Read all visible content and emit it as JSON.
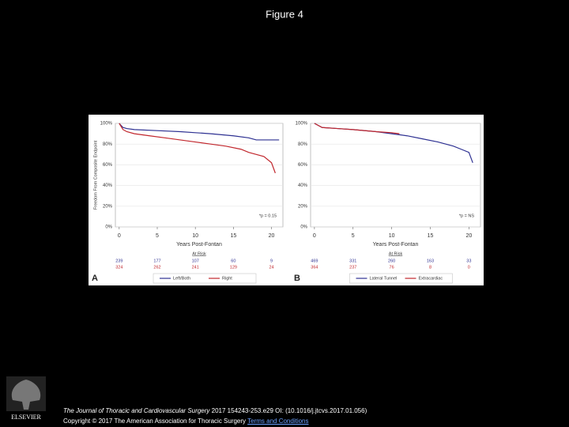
{
  "title": "Figure 4",
  "chart_data": [
    {
      "type": "line",
      "panel": "A",
      "ylabel": "Freedom From Composite Endpoint",
      "xlabel": "Years Post-Fontan",
      "annotation": "*p = 0.15",
      "xlim": [
        -0.5,
        21.5
      ],
      "xticks": [
        0,
        5,
        10,
        15,
        20
      ],
      "ylim": [
        0,
        100
      ],
      "yticks": [
        {
          "value": 0,
          "label": "0%"
        },
        {
          "value": 20,
          "label": "20%"
        },
        {
          "value": 40,
          "label": "40%"
        },
        {
          "value": 60,
          "label": "60%"
        },
        {
          "value": 80,
          "label": "80%"
        },
        {
          "value": 100,
          "label": "100%"
        }
      ],
      "series": [
        {
          "name": "Left/Both",
          "color": "#2e3192",
          "x": [
            0,
            0.5,
            1,
            2,
            5,
            8,
            10,
            12,
            15,
            17,
            18,
            20,
            21
          ],
          "values": [
            100,
            96,
            95,
            94,
            93,
            92,
            91,
            90,
            88,
            86,
            84,
            84,
            84
          ]
        },
        {
          "name": "Right",
          "color": "#c1272d",
          "x": [
            0,
            0.5,
            1,
            2,
            4,
            6,
            8,
            10,
            12,
            14,
            16,
            17,
            18,
            19,
            20,
            20.5
          ],
          "values": [
            100,
            94,
            92,
            90,
            88,
            86,
            84,
            82,
            80,
            78,
            75,
            72,
            70,
            68,
            62,
            52
          ]
        }
      ],
      "at_risk_title": "At Risk",
      "at_risk": [
        [
          239,
          177,
          107,
          60,
          9
        ],
        [
          324,
          262,
          241,
          129,
          24
        ]
      ]
    },
    {
      "type": "line",
      "panel": "B",
      "annotation": "*p = NS",
      "xlabel": "Years Post-Fontan",
      "xlim": [
        -0.5,
        21.5
      ],
      "xticks": [
        0,
        5,
        10,
        15,
        20
      ],
      "ylim": [
        0,
        100
      ],
      "yticks": [
        {
          "value": 0,
          "label": "0%"
        },
        {
          "value": 20,
          "label": "20%"
        },
        {
          "value": 40,
          "label": "40%"
        },
        {
          "value": 60,
          "label": "60%"
        },
        {
          "value": 80,
          "label": "80%"
        },
        {
          "value": 100,
          "label": "100%"
        }
      ],
      "series": [
        {
          "name": "Lateral Tunnel",
          "color": "#2e3192",
          "x": [
            0,
            1,
            3,
            5,
            8,
            10,
            12,
            14,
            16,
            18,
            19,
            20,
            20.5
          ],
          "values": [
            100,
            96,
            95,
            94,
            92,
            90,
            88,
            85,
            82,
            78,
            75,
            72,
            62
          ]
        },
        {
          "name": "Extracardiac",
          "color": "#c1272d",
          "x": [
            0,
            1,
            3,
            5,
            8,
            10,
            11
          ],
          "values": [
            100,
            96,
            95,
            94,
            92,
            91,
            90
          ]
        }
      ],
      "at_risk_title": "At Risk",
      "at_risk": [
        [
          469,
          331,
          260,
          163,
          33
        ],
        [
          364,
          237,
          76,
          8,
          0
        ]
      ]
    }
  ],
  "footer": {
    "journal": "The Journal of Thoracic and Cardiovascular Surgery",
    "citation": "2017 154243-253.e29 OI: (10.1016/j.jtcvs.2017.01.056)",
    "copyright": "Copyright © 2017 The American Association for Thoracic Surgery",
    "terms": "Terms and Conditions",
    "logo": "ELSEVIER"
  }
}
